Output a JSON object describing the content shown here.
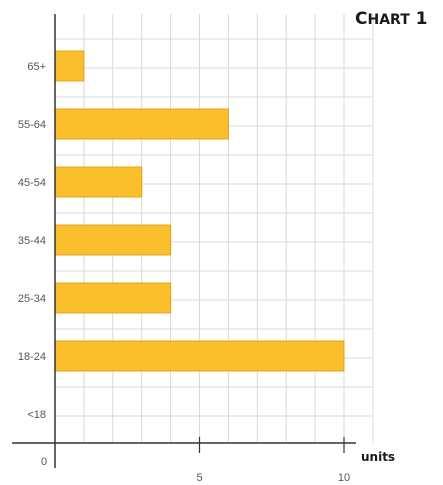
{
  "chart_data": {
    "type": "bar",
    "orientation": "horizontal",
    "title": "Chart 1",
    "xlabel": "units",
    "ylabel": "",
    "categories": [
      "<18",
      "18-24",
      "25-34",
      "35-44",
      "45-54",
      "55-64",
      "65+"
    ],
    "values": [
      0,
      10,
      4,
      4,
      3,
      6,
      1
    ],
    "xlim": [
      0,
      11
    ],
    "x_ticks": [
      "0",
      "5",
      "10"
    ],
    "grid": true,
    "legend": "none",
    "bar_color": "#FBBF2E",
    "bar_border_color": "#E0A418"
  }
}
